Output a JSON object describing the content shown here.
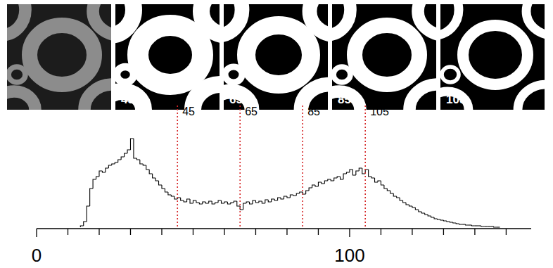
{
  "chart_data": {
    "type": "histogram",
    "bins": [
      14,
      15,
      16,
      17,
      18,
      19,
      20,
      21,
      22,
      23,
      24,
      25,
      26,
      27,
      28,
      29,
      30,
      31,
      32,
      33,
      34,
      35,
      36,
      37,
      38,
      39,
      40,
      41,
      42,
      43,
      44,
      45,
      46,
      47,
      48,
      49,
      50,
      51,
      52,
      53,
      54,
      55,
      56,
      57,
      58,
      59,
      60,
      61,
      62,
      63,
      64,
      65,
      66,
      67,
      68,
      69,
      70,
      71,
      72,
      73,
      74,
      75,
      76,
      77,
      78,
      79,
      80,
      81,
      82,
      83,
      84,
      85,
      86,
      87,
      88,
      89,
      90,
      91,
      92,
      93,
      94,
      95,
      96,
      97,
      98,
      99,
      100,
      101,
      102,
      103,
      104,
      105,
      106,
      107,
      108,
      109,
      110,
      111,
      112,
      113,
      114,
      115,
      116,
      117,
      118,
      119,
      120,
      121,
      122,
      123,
      124,
      125,
      126,
      127,
      128,
      129,
      130,
      131,
      132,
      133,
      134,
      135,
      136,
      137,
      138,
      139,
      140,
      141,
      142,
      143,
      144,
      145,
      146,
      147,
      148
    ],
    "counts": [
      2,
      8,
      30,
      55,
      68,
      72,
      80,
      78,
      84,
      88,
      90,
      92,
      96,
      100,
      105,
      110,
      126,
      98,
      96,
      90,
      88,
      82,
      76,
      70,
      66,
      60,
      55,
      50,
      46,
      44,
      40,
      42,
      38,
      36,
      40,
      34,
      38,
      35,
      33,
      36,
      34,
      37,
      33,
      35,
      38,
      34,
      36,
      33,
      35,
      37,
      30,
      25,
      34,
      36,
      33,
      38,
      35,
      37,
      34,
      39,
      36,
      40,
      38,
      42,
      40,
      44,
      42,
      46,
      45,
      48,
      50,
      47,
      52,
      56,
      60,
      58,
      64,
      62,
      66,
      68,
      66,
      70,
      72,
      68,
      76,
      78,
      82,
      74,
      80,
      84,
      76,
      82,
      72,
      70,
      64,
      66,
      60,
      55,
      52,
      48,
      44,
      42,
      38,
      35,
      32,
      30,
      28,
      25,
      22,
      20,
      18,
      16,
      14,
      12,
      11,
      10,
      9,
      8,
      7,
      6,
      5,
      4,
      4,
      3,
      3,
      2,
      2,
      2,
      1,
      1,
      1,
      1,
      0,
      0
    ],
    "color": "#000000",
    "xlim": [
      0,
      158
    ],
    "ylim": [
      0,
      130
    ],
    "xticks": [
      0,
      {
        "value": 10,
        "label": null
      },
      {
        "value": 20,
        "label": null
      },
      {
        "value": 30,
        "label": null
      },
      {
        "value": 40,
        "label": null
      },
      {
        "value": 50,
        "label": null
      },
      {
        "value": 60,
        "label": null
      },
      {
        "value": 70,
        "label": null
      },
      {
        "value": 80,
        "label": null
      },
      {
        "value": 90,
        "label": null
      },
      100,
      {
        "value": 110,
        "label": null
      },
      {
        "value": 120,
        "label": null
      },
      {
        "value": 130,
        "label": null
      },
      {
        "value": 140,
        "label": null
      },
      {
        "value": 150,
        "label": null
      }
    ],
    "tick_labels": "x",
    "annotations": [
      {
        "x": 45,
        "label": "45",
        "color": "#d62728"
      },
      {
        "x": 65,
        "label": "65",
        "color": "#d62728"
      },
      {
        "x": 85,
        "label": "85",
        "color": "#d62728"
      },
      {
        "x": 105,
        "label": "105",
        "color": "#d62728"
      }
    ]
  }
}
